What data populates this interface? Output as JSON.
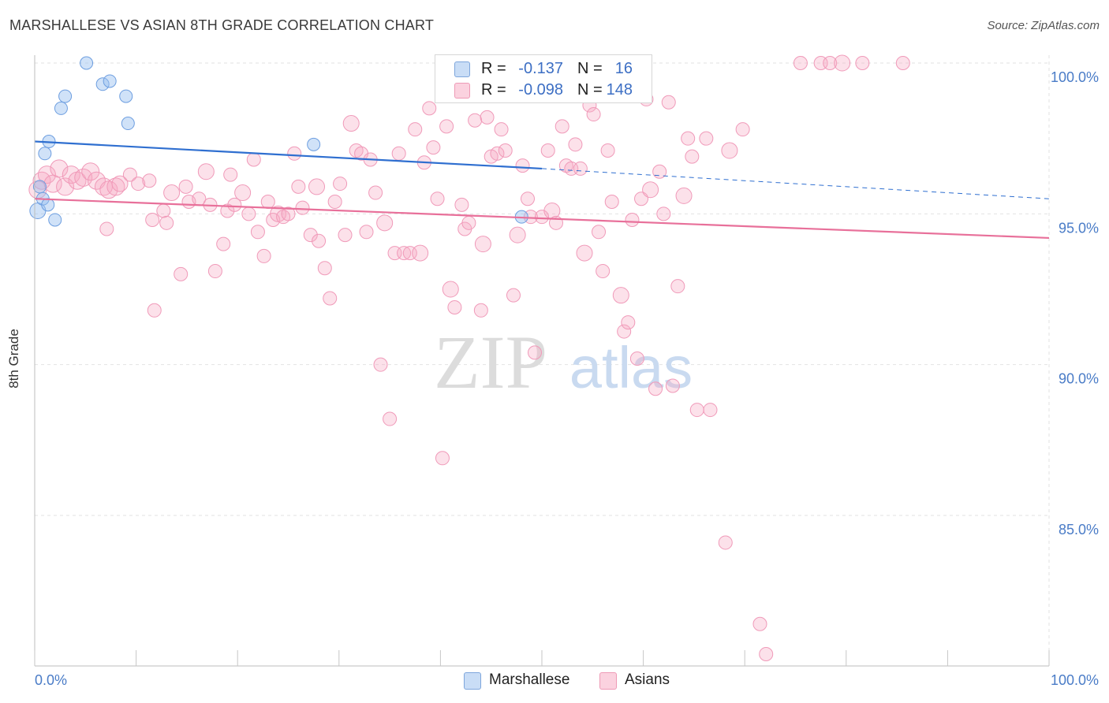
{
  "header": {
    "title": "MARSHALLESE VS ASIAN 8TH GRADE CORRELATION CHART",
    "source": "Source: ZipAtlas.com"
  },
  "watermark": {
    "zip": "ZIP",
    "atlas": "atlas"
  },
  "legend": {
    "rows": [
      {
        "r_label": "R =",
        "r_value": "-0.137",
        "n_label": "N =",
        "n_value": "16",
        "color": "#a9c8f2"
      },
      {
        "r_label": "R =",
        "r_value": "-0.098",
        "n_label": "N =",
        "n_value": "148",
        "color": "#f8b8cc"
      }
    ]
  },
  "bottom_legend": {
    "series1": "Marshallese",
    "series2": "Asians"
  },
  "chart_data": {
    "type": "scatter",
    "title": "MARSHALLESE VS ASIAN 8TH GRADE CORRELATION CHART",
    "ylabel": "8th Grade",
    "xlabel": "",
    "xlim": [
      0,
      100
    ],
    "ylim": [
      80.5,
      100.8
    ],
    "x_tick_labels": [
      "0.0%",
      "100.0%"
    ],
    "y_ticks": [
      100,
      95,
      90,
      85
    ],
    "y_tick_labels": [
      "100.0%",
      "95.0%",
      "90.0%",
      "85.0%"
    ],
    "grid": true,
    "colors": {
      "marshallese": "#6d9ee0",
      "asians": "#ef8cab",
      "marsh_line": "#2f6fd0",
      "asian_line": "#e8709a"
    },
    "series": [
      {
        "name": "Marshallese",
        "trend": {
          "x0": 0,
          "y0": 97.4,
          "x1": 50,
          "y1": 96.5,
          "dashed_to_x": 100,
          "dashed_to_y": 95.5
        },
        "points": [
          [
            0.3,
            95.1
          ],
          [
            0.5,
            95.9
          ],
          [
            0.8,
            95.5
          ],
          [
            1.0,
            97.0
          ],
          [
            1.3,
            95.3
          ],
          [
            1.4,
            97.4
          ],
          [
            2.0,
            94.8
          ],
          [
            2.6,
            98.5
          ],
          [
            3.0,
            98.9
          ],
          [
            5.1,
            100.0
          ],
          [
            6.7,
            99.3
          ],
          [
            7.4,
            99.4
          ],
          [
            9.0,
            98.9
          ],
          [
            9.2,
            98.0
          ],
          [
            27.5,
            97.3
          ],
          [
            48.0,
            94.9
          ]
        ]
      },
      {
        "name": "Asians",
        "trend": {
          "x0": 0,
          "y0": 95.5,
          "x1": 100,
          "y1": 94.2
        },
        "points": [
          [
            0.3,
            95.8
          ],
          [
            0.7,
            96.1
          ],
          [
            1.2,
            96.3
          ],
          [
            1.8,
            96.0
          ],
          [
            2.4,
            96.5
          ],
          [
            3.0,
            95.9
          ],
          [
            3.6,
            96.3
          ],
          [
            4.2,
            96.1
          ],
          [
            4.8,
            96.2
          ],
          [
            5.5,
            96.4
          ],
          [
            6.1,
            96.1
          ],
          [
            6.8,
            95.9
          ],
          [
            7.3,
            95.8
          ],
          [
            8.0,
            95.9
          ],
          [
            8.4,
            96.0
          ],
          [
            9.4,
            96.3
          ],
          [
            10.2,
            96.0
          ],
          [
            11.3,
            96.1
          ],
          [
            11.6,
            94.8
          ],
          [
            12.7,
            95.1
          ],
          [
            13.0,
            94.7
          ],
          [
            13.5,
            95.7
          ],
          [
            14.4,
            93.0
          ],
          [
            14.9,
            95.9
          ],
          [
            7.1,
            94.5
          ],
          [
            11.8,
            91.8
          ],
          [
            15.2,
            95.4
          ],
          [
            16.2,
            95.5
          ],
          [
            16.9,
            96.4
          ],
          [
            17.3,
            95.3
          ],
          [
            17.8,
            93.1
          ],
          [
            18.6,
            94.0
          ],
          [
            19.0,
            95.1
          ],
          [
            19.3,
            96.3
          ],
          [
            19.7,
            95.3
          ],
          [
            20.5,
            95.7
          ],
          [
            21.1,
            95.0
          ],
          [
            21.6,
            96.8
          ],
          [
            22.0,
            94.4
          ],
          [
            22.6,
            93.6
          ],
          [
            23.0,
            95.4
          ],
          [
            23.5,
            94.8
          ],
          [
            24.0,
            95.0
          ],
          [
            24.5,
            94.9
          ],
          [
            25.0,
            95.0
          ],
          [
            25.6,
            97.0
          ],
          [
            26.0,
            95.9
          ],
          [
            26.4,
            95.2
          ],
          [
            27.2,
            94.3
          ],
          [
            27.8,
            95.9
          ],
          [
            28.0,
            94.1
          ],
          [
            28.6,
            93.2
          ],
          [
            29.1,
            92.2
          ],
          [
            29.6,
            95.4
          ],
          [
            30.1,
            96.0
          ],
          [
            30.6,
            94.3
          ],
          [
            31.2,
            98.0
          ],
          [
            31.7,
            97.1
          ],
          [
            32.2,
            97.0
          ],
          [
            32.7,
            94.4
          ],
          [
            33.1,
            96.8
          ],
          [
            33.6,
            95.7
          ],
          [
            34.1,
            90.0
          ],
          [
            34.5,
            94.7
          ],
          [
            35.0,
            88.2
          ],
          [
            35.5,
            93.7
          ],
          [
            35.9,
            97.0
          ],
          [
            36.4,
            93.7
          ],
          [
            37.0,
            93.7
          ],
          [
            37.5,
            97.8
          ],
          [
            38.0,
            93.7
          ],
          [
            38.4,
            96.7
          ],
          [
            38.9,
            98.5
          ],
          [
            39.3,
            97.2
          ],
          [
            39.7,
            95.5
          ],
          [
            40.2,
            86.9
          ],
          [
            40.6,
            97.9
          ],
          [
            41.0,
            92.5
          ],
          [
            41.4,
            91.9
          ],
          [
            42.1,
            95.3
          ],
          [
            42.4,
            94.5
          ],
          [
            42.8,
            94.7
          ],
          [
            43.4,
            98.1
          ],
          [
            44.0,
            91.8
          ],
          [
            44.2,
            94.0
          ],
          [
            44.6,
            98.2
          ],
          [
            45.0,
            96.9
          ],
          [
            45.6,
            97.0
          ],
          [
            46.0,
            97.8
          ],
          [
            46.4,
            97.1
          ],
          [
            47.2,
            92.3
          ],
          [
            47.6,
            94.3
          ],
          [
            48.1,
            96.6
          ],
          [
            48.6,
            95.5
          ],
          [
            48.9,
            94.9
          ],
          [
            49.3,
            90.4
          ],
          [
            50.0,
            94.9
          ],
          [
            50.6,
            97.1
          ],
          [
            51.0,
            95.1
          ],
          [
            51.4,
            94.7
          ],
          [
            52.0,
            97.9
          ],
          [
            52.4,
            96.6
          ],
          [
            52.9,
            96.5
          ],
          [
            53.3,
            97.3
          ],
          [
            53.8,
            96.5
          ],
          [
            54.2,
            93.7
          ],
          [
            54.7,
            98.6
          ],
          [
            55.1,
            98.3
          ],
          [
            55.6,
            94.4
          ],
          [
            56.0,
            93.1
          ],
          [
            56.5,
            97.1
          ],
          [
            56.9,
            95.4
          ],
          [
            57.8,
            92.3
          ],
          [
            58.1,
            91.1
          ],
          [
            58.5,
            91.4
          ],
          [
            58.9,
            94.8
          ],
          [
            59.4,
            90.2
          ],
          [
            59.8,
            95.5
          ],
          [
            60.3,
            98.8
          ],
          [
            60.7,
            95.8
          ],
          [
            61.2,
            89.2
          ],
          [
            61.6,
            96.4
          ],
          [
            62.0,
            95.0
          ],
          [
            62.5,
            98.7
          ],
          [
            62.9,
            89.3
          ],
          [
            63.4,
            92.6
          ],
          [
            64.0,
            95.6
          ],
          [
            64.4,
            97.5
          ],
          [
            64.8,
            96.9
          ],
          [
            65.3,
            88.5
          ],
          [
            66.2,
            97.5
          ],
          [
            66.6,
            88.5
          ],
          [
            68.1,
            84.1
          ],
          [
            68.5,
            97.1
          ],
          [
            69.8,
            97.8
          ],
          [
            72.1,
            80.4
          ],
          [
            71.5,
            81.4
          ],
          [
            75.5,
            100.0
          ],
          [
            77.5,
            100.0
          ],
          [
            78.4,
            100.0
          ],
          [
            79.6,
            100.0
          ],
          [
            81.6,
            100.0
          ],
          [
            85.6,
            100.0
          ]
        ]
      }
    ]
  }
}
